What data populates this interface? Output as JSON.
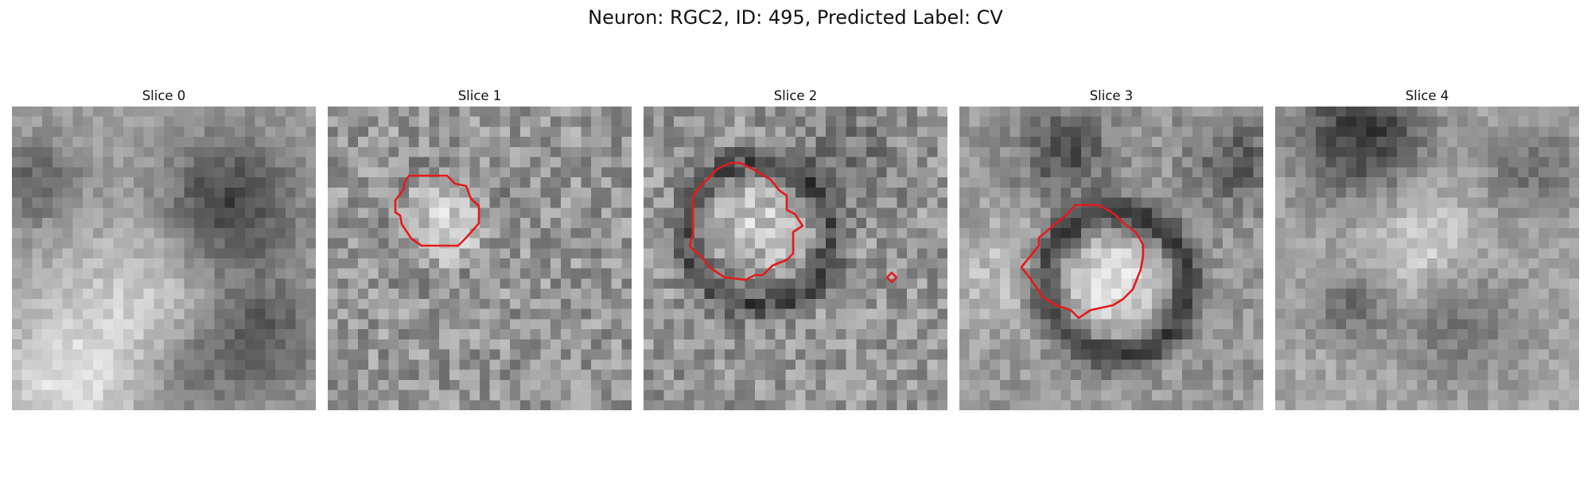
{
  "figure": {
    "title": "Neuron: RGC2, ID: 495, Predicted Label: CV",
    "contour_color": "#e41a1c",
    "colormap": "grayscale",
    "slices": [
      {
        "title": "Slice 0"
      },
      {
        "title": "Slice 1"
      },
      {
        "title": "Slice 2"
      },
      {
        "title": "Slice 3"
      },
      {
        "title": "Slice 4"
      }
    ]
  }
}
